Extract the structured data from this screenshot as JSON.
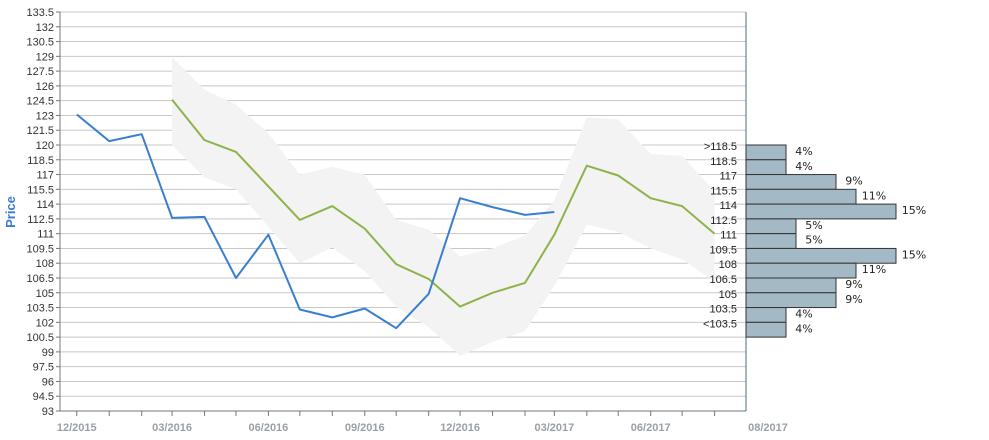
{
  "chart_data": {
    "type": "line",
    "ylabel": "Price",
    "ylim": [
      93,
      133.5
    ],
    "y_ticks": [
      "133.5",
      "132",
      "130.5",
      "129",
      "127.5",
      "126",
      "124.5",
      "123",
      "121.5",
      "120",
      "118.5",
      "117",
      "115.5",
      "114",
      "112.5",
      "111",
      "109.5",
      "108",
      "106.5",
      "105",
      "103.5",
      "102",
      "100.5",
      "99",
      "97.5",
      "96",
      "94.5",
      "93"
    ],
    "x_tick_labels": [
      "12/2015",
      "03/2016",
      "06/2016",
      "09/2016",
      "12/2016",
      "03/2017",
      "06/2017",
      "08/2017"
    ],
    "colors": {
      "actual": "#3a7fcf",
      "forecast": "#8db34a",
      "band": "#f3f3f3",
      "hist_bar": "#a3b9c5",
      "hist_edge": "#333333",
      "grid": "#c8c8c8"
    },
    "series": [
      {
        "key": "actual",
        "values": [
          {
            "x": "2015-12-01",
            "y": 123.1
          },
          {
            "x": "2016-01-01",
            "y": 120.4
          },
          {
            "x": "2016-02-01",
            "y": 121.1
          },
          {
            "x": "2016-03-01",
            "y": 112.6
          },
          {
            "x": "2016-04-01",
            "y": 112.7
          },
          {
            "x": "2016-05-01",
            "y": 106.5
          },
          {
            "x": "2016-06-01",
            "y": 110.9
          },
          {
            "x": "2016-07-01",
            "y": 103.3
          },
          {
            "x": "2016-08-01",
            "y": 102.5
          },
          {
            "x": "2016-09-01",
            "y": 103.4
          },
          {
            "x": "2016-10-01",
            "y": 101.4
          },
          {
            "x": "2016-11-01",
            "y": 104.9
          },
          {
            "x": "2016-12-01",
            "y": 114.6
          },
          {
            "x": "2017-01-01",
            "y": 113.7
          },
          {
            "x": "2017-02-01",
            "y": 112.9
          },
          {
            "x": "2017-03-01",
            "y": 113.2
          }
        ]
      },
      {
        "key": "forecast",
        "values": [
          {
            "x": "2016-03-01",
            "y": 124.6
          },
          {
            "x": "2016-04-01",
            "y": 120.5
          },
          {
            "x": "2016-05-01",
            "y": 119.3
          },
          {
            "x": "2016-06-01",
            "y": 115.8
          },
          {
            "x": "2016-07-01",
            "y": 112.4
          },
          {
            "x": "2016-08-01",
            "y": 113.8
          },
          {
            "x": "2016-09-01",
            "y": 111.5
          },
          {
            "x": "2016-10-01",
            "y": 107.9
          },
          {
            "x": "2016-11-01",
            "y": 106.4
          },
          {
            "x": "2016-12-01",
            "y": 103.6
          },
          {
            "x": "2017-01-01",
            "y": 105.0
          },
          {
            "x": "2017-02-01",
            "y": 106.0
          },
          {
            "x": "2017-03-01",
            "y": 110.9
          },
          {
            "x": "2017-04-01",
            "y": 117.9
          },
          {
            "x": "2017-05-01",
            "y": 116.9
          },
          {
            "x": "2017-06-01",
            "y": 114.6
          },
          {
            "x": "2017-07-01",
            "y": 113.8
          },
          {
            "x": "2017-08-01",
            "y": 111.0
          }
        ]
      },
      {
        "key": "band",
        "values": [
          {
            "x": "2016-03-01",
            "low": 120.0,
            "high": 128.9
          },
          {
            "x": "2016-04-01",
            "low": 116.7,
            "high": 125.6
          },
          {
            "x": "2016-05-01",
            "low": 115.5,
            "high": 124.1
          },
          {
            "x": "2016-06-01",
            "low": 111.7,
            "high": 121.2
          },
          {
            "x": "2016-07-01",
            "low": 108.0,
            "high": 117.0
          },
          {
            "x": "2016-08-01",
            "low": 109.6,
            "high": 117.8
          },
          {
            "x": "2016-09-01",
            "low": 107.2,
            "high": 117.0
          },
          {
            "x": "2016-10-01",
            "low": 103.6,
            "high": 112.4
          },
          {
            "x": "2016-11-01",
            "low": 101.5,
            "high": 111.4
          },
          {
            "x": "2016-12-01",
            "low": 98.6,
            "high": 108.7
          },
          {
            "x": "2017-01-01",
            "low": 100.0,
            "high": 109.5
          },
          {
            "x": "2017-02-01",
            "low": 101.1,
            "high": 110.8
          },
          {
            "x": "2017-03-01",
            "low": 105.7,
            "high": 114.4
          },
          {
            "x": "2017-04-01",
            "low": 111.9,
            "high": 122.8
          },
          {
            "x": "2017-05-01",
            "low": 111.2,
            "high": 122.6
          },
          {
            "x": "2017-06-01",
            "low": 109.5,
            "high": 119.1
          },
          {
            "x": "2017-07-01",
            "low": 108.4,
            "high": 118.9
          },
          {
            "x": "2017-08-01",
            "low": 106.1,
            "high": 115.3
          }
        ]
      }
    ],
    "histogram": [
      {
        "label": ">118.5",
        "percent": "4%",
        "value": 4
      },
      {
        "label": "118.5",
        "percent": "4%",
        "value": 4
      },
      {
        "label": "117",
        "percent": "9%",
        "value": 9
      },
      {
        "label": "115.5",
        "percent": "11%",
        "value": 11
      },
      {
        "label": "114",
        "percent": "15%",
        "value": 15
      },
      {
        "label": "112.5",
        "percent": "5%",
        "value": 5
      },
      {
        "label": "111",
        "percent": "5%",
        "value": 5
      },
      {
        "label": "109.5",
        "percent": "15%",
        "value": 15
      },
      {
        "label": "108",
        "percent": "11%",
        "value": 11
      },
      {
        "label": "106.5",
        "percent": "9%",
        "value": 9
      },
      {
        "label": "105",
        "percent": "9%",
        "value": 9
      },
      {
        "label": "103.5",
        "percent": "4%",
        "value": 4
      },
      {
        "label": "<103.5",
        "percent": "4%",
        "value": 4
      }
    ]
  }
}
